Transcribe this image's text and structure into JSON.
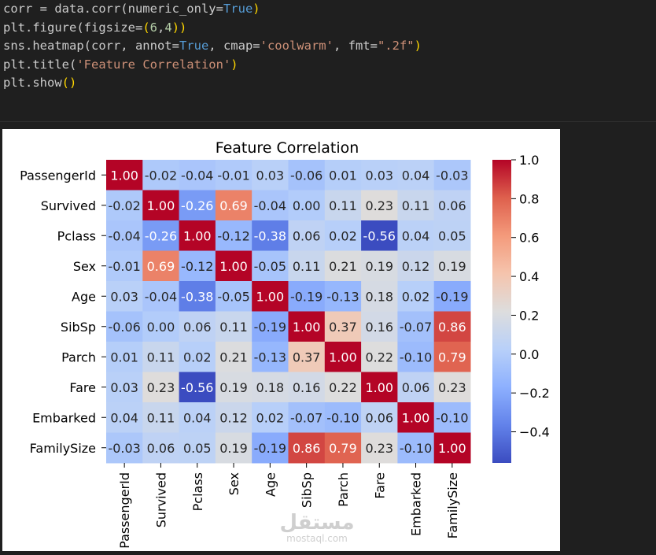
{
  "code": {
    "lines": [
      [
        {
          "t": "corr = data.corr(numeric_only=",
          "c": "plain"
        },
        {
          "t": "True",
          "c": "kw"
        },
        {
          "t": ")",
          "c": "paren"
        }
      ],
      [
        {
          "t": "plt.figure(figsize=",
          "c": "plain"
        },
        {
          "t": "(",
          "c": "paren"
        },
        {
          "t": "6",
          "c": "num"
        },
        {
          "t": ",",
          "c": "plain"
        },
        {
          "t": "4",
          "c": "num"
        },
        {
          "t": "))",
          "c": "paren"
        }
      ],
      [
        {
          "t": "sns.heatmap(corr, annot=",
          "c": "plain"
        },
        {
          "t": "True",
          "c": "kw"
        },
        {
          "t": ", cmap=",
          "c": "plain"
        },
        {
          "t": "'coolwarm'",
          "c": "str"
        },
        {
          "t": ", fmt=",
          "c": "plain"
        },
        {
          "t": "\".2f\"",
          "c": "str"
        },
        {
          "t": ")",
          "c": "paren"
        }
      ],
      [
        {
          "t": "plt.title(",
          "c": "plain"
        },
        {
          "t": "'Feature Correlation'",
          "c": "str"
        },
        {
          "t": ")",
          "c": "paren"
        }
      ],
      [
        {
          "t": "plt.show",
          "c": "plain"
        },
        {
          "t": "()",
          "c": "paren"
        }
      ]
    ]
  },
  "chart_data": {
    "type": "heatmap",
    "title": "Feature Correlation",
    "labels": [
      "PassengerId",
      "Survived",
      "Pclass",
      "Sex",
      "Age",
      "SibSp",
      "Parch",
      "Fare",
      "Embarked",
      "FamilySize"
    ],
    "values": [
      [
        1.0,
        -0.02,
        -0.04,
        -0.01,
        0.03,
        -0.06,
        0.01,
        0.03,
        0.04,
        -0.03
      ],
      [
        -0.02,
        1.0,
        -0.26,
        0.69,
        -0.04,
        0.0,
        0.11,
        0.23,
        0.11,
        0.06
      ],
      [
        -0.04,
        -0.26,
        1.0,
        -0.12,
        -0.38,
        0.06,
        0.02,
        -0.56,
        0.04,
        0.05
      ],
      [
        -0.01,
        0.69,
        -0.12,
        1.0,
        -0.05,
        0.11,
        0.21,
        0.19,
        0.12,
        0.19
      ],
      [
        0.03,
        -0.04,
        -0.38,
        -0.05,
        1.0,
        -0.19,
        -0.13,
        0.18,
        0.02,
        -0.19
      ],
      [
        -0.06,
        0.0,
        0.06,
        0.11,
        -0.19,
        1.0,
        0.37,
        0.16,
        -0.07,
        0.86
      ],
      [
        0.01,
        0.11,
        0.02,
        0.21,
        -0.13,
        0.37,
        1.0,
        0.22,
        -0.1,
        0.79
      ],
      [
        0.03,
        0.23,
        -0.56,
        0.19,
        0.18,
        0.16,
        0.22,
        1.0,
        0.06,
        0.23
      ],
      [
        0.04,
        0.11,
        0.04,
        0.12,
        0.02,
        -0.07,
        -0.1,
        0.06,
        1.0,
        -0.1
      ],
      [
        -0.03,
        0.06,
        0.05,
        0.19,
        -0.19,
        0.86,
        0.79,
        0.23,
        -0.1,
        1.0
      ]
    ],
    "colormap": "coolwarm",
    "vmin": -0.56,
    "vmax": 1.0,
    "colorbar_ticks": [
      -0.4,
      -0.2,
      0.0,
      0.2,
      0.4,
      0.6,
      0.8,
      1.0
    ],
    "colorbar_tick_labels": [
      "−0.4",
      "−0.2",
      "0.0",
      "0.2",
      "0.4",
      "0.6",
      "0.8",
      "1.0"
    ]
  },
  "watermark": {
    "text": "mostaql.com",
    "logo_text": "مستقل"
  }
}
